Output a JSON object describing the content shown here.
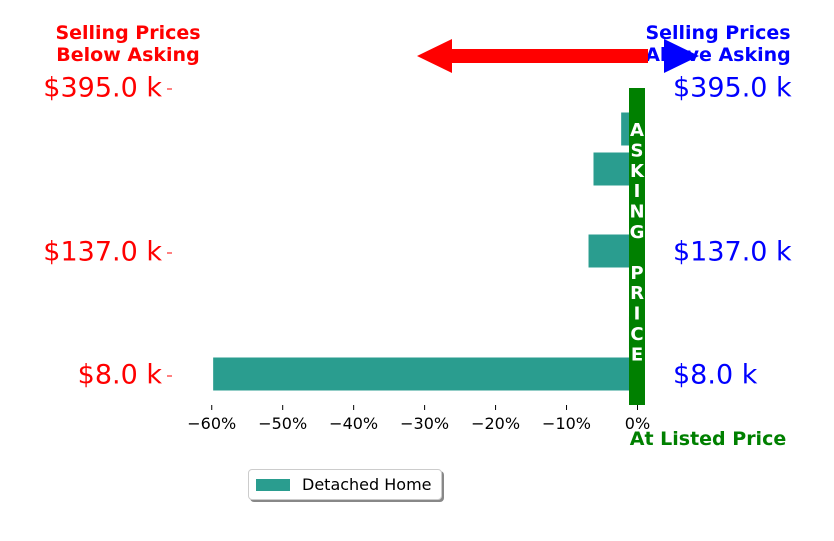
{
  "chart_data": {
    "type": "bar",
    "orientation": "horizontal",
    "title_left": [
      "Selling Prices",
      "Below Asking"
    ],
    "title_right": [
      "Selling Prices",
      "Above Asking"
    ],
    "asking_band_text": "ASKING PRICE",
    "asking_band_label": "At Listed Price",
    "y_tick_labels": [
      "$395.0 k",
      "$137.0 k",
      "$8.0 k"
    ],
    "x_tick_labels": [
      "−60%",
      "−50%",
      "−40%",
      "−30%",
      "−20%",
      "−10%",
      "0%"
    ],
    "x_ticks": [
      -60,
      -50,
      -40,
      -30,
      -20,
      -10,
      0
    ],
    "xlim": [
      -62.5,
      1.2
    ],
    "series": [
      {
        "name": "Detached Home",
        "color": "#2a9d8f",
        "bars": [
          {
            "slot": 0,
            "value": -2.3
          },
          {
            "slot": 1,
            "value": -6.2
          },
          {
            "slot": 2,
            "value": -6.9
          },
          {
            "slot": 3,
            "value": -1.2
          },
          {
            "slot": 4,
            "value": -59.8
          }
        ]
      }
    ],
    "legend": {
      "placement": "lower-center"
    },
    "colors": {
      "below": "#ff0000",
      "above": "#0000ff",
      "asking": "#008000",
      "bar": "#2a9d8f"
    },
    "grid": false
  }
}
